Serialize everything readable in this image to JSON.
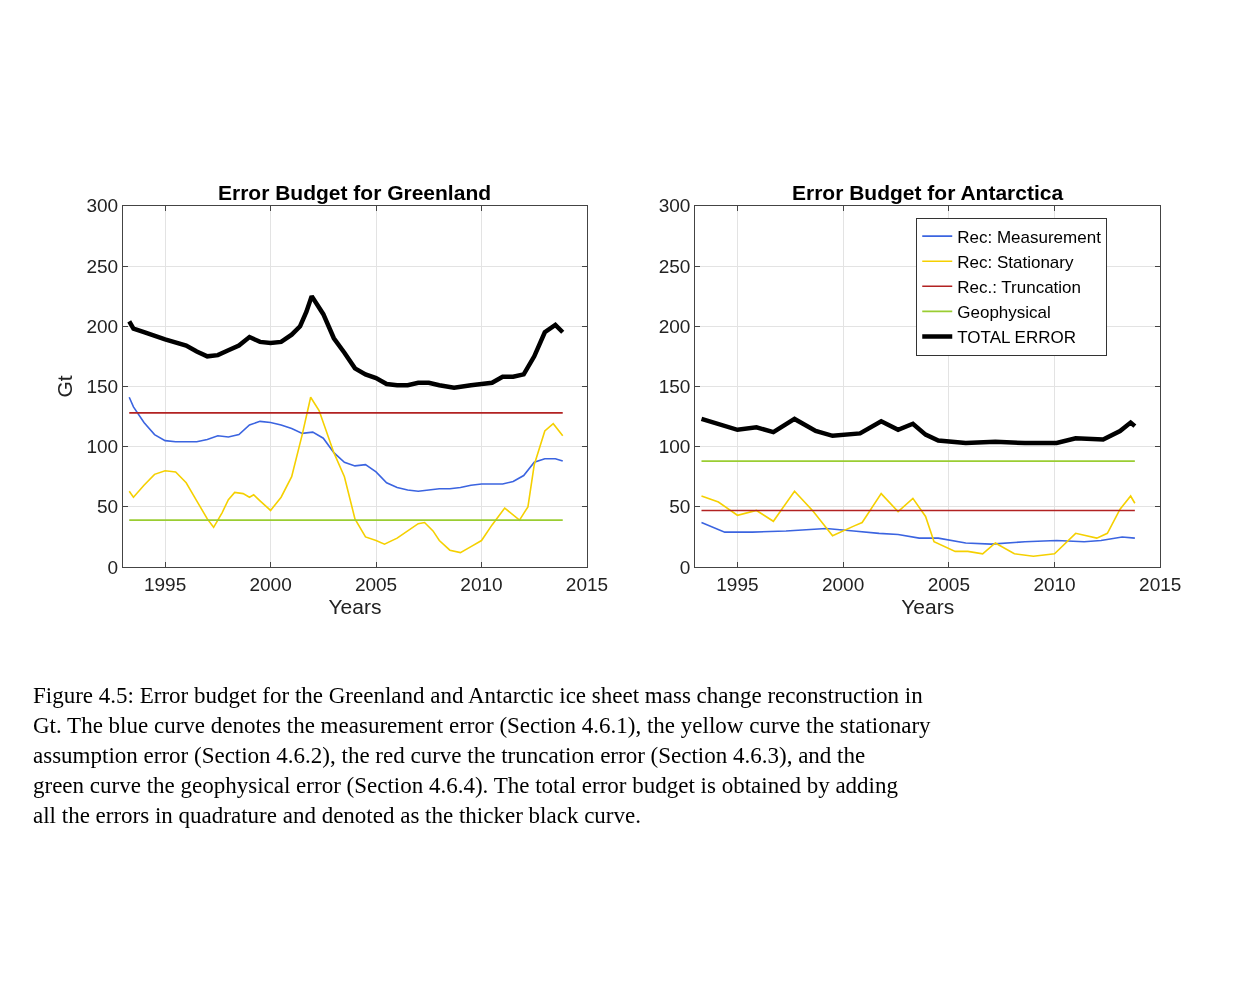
{
  "chart_data": [
    {
      "type": "line",
      "title": "Error Budget for Greenland",
      "xlabel": "Years",
      "ylabel": "Gt",
      "xlim": [
        1993,
        2015
      ],
      "xticks": [
        1995,
        2000,
        2005,
        2010,
        2015
      ],
      "ylim": [
        0,
        300
      ],
      "yticks": [
        0,
        50,
        100,
        150,
        200,
        250,
        300
      ],
      "grid": true,
      "legend": false,
      "series": [
        {
          "color": "#3b64e0",
          "x": [
            1993.3,
            1993.5,
            1994,
            1994.5,
            1995,
            1995.5,
            1996,
            1996.5,
            1997,
            1997.5,
            1998,
            1998.5,
            1999,
            1999.5,
            2000,
            2000.5,
            2001,
            2001.5,
            2002,
            2002.5,
            2003,
            2003.5,
            2004,
            2004.5,
            2005,
            2005.5,
            2006,
            2006.5,
            2007,
            2007.5,
            2008,
            2008.5,
            2009,
            2009.5,
            2010,
            2010.5,
            2011,
            2011.5,
            2012,
            2012.5,
            2013,
            2013.5,
            2013.85
          ],
          "values": [
            141,
            133,
            120,
            110,
            105,
            104,
            104,
            104,
            106,
            109,
            108,
            110,
            118,
            121,
            120,
            118,
            115,
            111,
            112,
            107,
            95,
            87,
            84,
            85,
            79,
            70,
            66,
            64,
            63,
            64,
            65,
            65,
            66,
            68,
            69,
            69,
            69,
            71,
            76,
            87,
            90,
            90,
            88
          ]
        },
        {
          "color": "#f5d000",
          "x": [
            1993.3,
            1993.5,
            1994,
            1994.5,
            1995,
            1995.5,
            1996,
            1996.5,
            1997,
            1997.3,
            1997.7,
            1998,
            1998.3,
            1998.7,
            1999,
            1999.2,
            1999.5,
            2000,
            2000.5,
            2001,
            2001.5,
            2001.9,
            2002.3,
            2003,
            2003.5,
            2004,
            2004.5,
            2005,
            2005.4,
            2006,
            2006.5,
            2007,
            2007.3,
            2007.7,
            2008,
            2008.5,
            2009,
            2009.5,
            2010,
            2010.5,
            2011.1,
            2011.8,
            2012.2,
            2012.5,
            2013,
            2013.4,
            2013.85
          ],
          "values": [
            63,
            58,
            68,
            77,
            80,
            79,
            70,
            55,
            40,
            33,
            45,
            56,
            62,
            61,
            58,
            60,
            55,
            47,
            58,
            75,
            110,
            141,
            130,
            95,
            75,
            40,
            25,
            22,
            19,
            24,
            30,
            36,
            37,
            30,
            22,
            14,
            12,
            17,
            22,
            35,
            49,
            39,
            50,
            85,
            113,
            119,
            109
          ]
        },
        {
          "color": "#b22222",
          "x": [
            1993.3,
            2013.85
          ],
          "values": [
            128,
            128
          ]
        },
        {
          "color": "#9acd32",
          "x": [
            1993.3,
            2013.85
          ],
          "values": [
            39,
            39
          ]
        },
        {
          "color": "#000000",
          "x": [
            1993.3,
            1993.5,
            1994,
            1995,
            1996,
            1996.5,
            1997,
            1997.5,
            1998,
            1998.5,
            1999,
            1999.5,
            2000,
            2000.5,
            2001,
            2001.4,
            2001.7,
            2001.95,
            2002.5,
            2003,
            2003.5,
            2004,
            2004.5,
            2005,
            2005.5,
            2006,
            2006.5,
            2007,
            2007.5,
            2008,
            2008.7,
            2009.5,
            2010,
            2010.5,
            2011,
            2011.5,
            2012,
            2012.5,
            2013,
            2013.5,
            2013.85
          ],
          "values": [
            204,
            198,
            195,
            189,
            184,
            179,
            175,
            176,
            180,
            184,
            191,
            187,
            186,
            187,
            193,
            200,
            212,
            225,
            210,
            190,
            178,
            165,
            160,
            157,
            152,
            151,
            151,
            153,
            153,
            151,
            149,
            151,
            152,
            153,
            158,
            158,
            160,
            175,
            195,
            201,
            195
          ]
        }
      ],
      "annotations": [
        "Figure 4.5: Error budget for the Greenland and Antarctic ice sheet mass change reconstruction in Gt. The blue curve denotes the measurement error (Section 4.6.1), the yellow curve the stationary assumption error (Section 4.6.2), the red curve the truncation error (Section 4.6.3), and the green curve the geophysical error (Section 4.6.4). The total error budget is obtained by adding all the errors in quadrature and denoted as the thicker black curve."
      ]
    },
    {
      "type": "line",
      "title": "Error Budget for Antarctica",
      "xlabel": "Years",
      "xlim": [
        1993,
        2015
      ],
      "xticks": [
        1995,
        2000,
        2005,
        2010,
        2015
      ],
      "ylim": [
        0,
        300
      ],
      "yticks": [
        0,
        50,
        100,
        150,
        200,
        250,
        300
      ],
      "grid": true,
      "legend": "top right",
      "series": [
        {
          "name": "Rec: Measurement",
          "color": "#3b64e0",
          "x": [
            1993.3,
            1994.4,
            1995.7,
            1997.3,
            1999.2,
            2000.5,
            2001.7,
            2002.6,
            2003.6,
            2004.5,
            2005.8,
            2007.0,
            2008.6,
            2010.1,
            2011.4,
            2012.2,
            2013.2,
            2013.8
          ],
          "values": [
            37,
            29,
            29,
            30,
            32,
            30,
            28,
            27,
            24,
            24,
            20,
            19,
            21,
            22,
            21,
            22,
            25,
            24
          ]
        },
        {
          "name": "Rec: Stationary",
          "color": "#f5d000",
          "x": [
            1993.3,
            1994.1,
            1995,
            1995.9,
            1996.7,
            1997.7,
            1998.6,
            1999.5,
            2000.5,
            2000.9,
            2001.8,
            2002.6,
            2003.3,
            2003.9,
            2004.3,
            2005.3,
            2005.9,
            2006.6,
            2007.2,
            2008.1,
            2009.0,
            2010.0,
            2011.0,
            2012.0,
            2012.5,
            2013.1,
            2013.6,
            2013.8
          ],
          "values": [
            59,
            54,
            43,
            47,
            38,
            63,
            46,
            26,
            34,
            37,
            61,
            46,
            57,
            42,
            21,
            13,
            13,
            11,
            20,
            11,
            9,
            11,
            28,
            24,
            28,
            48,
            59,
            53
          ]
        },
        {
          "name": "Rec.: Truncation",
          "color": "#b22222",
          "x": [
            1993.3,
            2013.8
          ],
          "values": [
            47,
            47
          ]
        },
        {
          "name": "Geophysical",
          "color": "#9acd32",
          "x": [
            1993.3,
            2013.8
          ],
          "values": [
            88,
            88
          ]
        },
        {
          "name": "TOTAL ERROR",
          "color": "#000000",
          "x": [
            1993.3,
            1995,
            1995.9,
            1996.7,
            1997.7,
            1998.7,
            1999.5,
            2000.8,
            2001.8,
            2002.6,
            2003.3,
            2003.9,
            2004.5,
            2005.8,
            2007.2,
            2008.6,
            2010.1,
            2011.0,
            2012.3,
            2013.1,
            2013.6,
            2013.8
          ],
          "values": [
            123,
            114,
            116,
            112,
            123,
            113,
            109,
            111,
            121,
            114,
            119,
            110,
            105,
            103,
            104,
            103,
            103,
            107,
            106,
            113,
            120,
            117
          ]
        }
      ]
    }
  ]
}
